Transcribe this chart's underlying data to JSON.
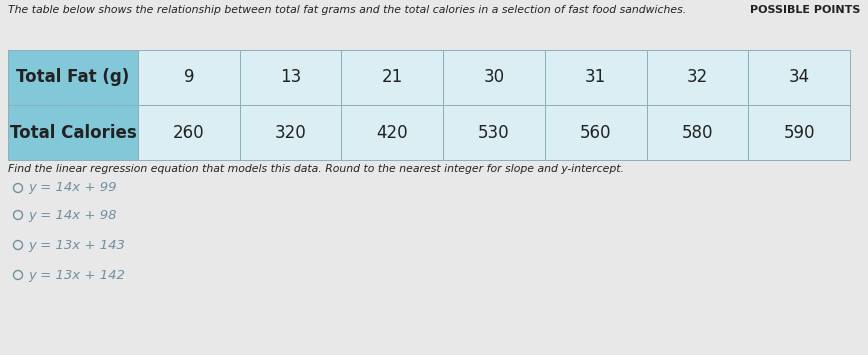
{
  "title_text": "The table below shows the relationship between total fat grams and the total calories in a selection of fast food sandwiches.",
  "possible_points_text": "POSSIBLE POINTS",
  "header_row": [
    "Total Fat (g)",
    "9",
    "13",
    "21",
    "30",
    "31",
    "32",
    "34"
  ],
  "data_row": [
    "Total Calories",
    "260",
    "320",
    "420",
    "530",
    "560",
    "580",
    "590"
  ],
  "question_text": "Find the linear regression equation that models this data. Round to the nearest integer for slope and y-intercept.",
  "options": [
    "y = 14x + 99",
    "y = 14x + 98",
    "y = 13x + 143",
    "y = 13x + 142"
  ],
  "header_bg_color": "#82c8d8",
  "cell_bg_color": "#daeef4",
  "border_color": "#8ab0bc",
  "text_color_dark": "#222222",
  "option_text_color": "#7090a0",
  "bg_color": "#e8e8e8",
  "title_fontsize": 7.8,
  "header_fontsize": 12,
  "data_fontsize": 12,
  "question_fontsize": 7.8,
  "option_fontsize": 9.5,
  "possible_points_fontsize": 8.0
}
